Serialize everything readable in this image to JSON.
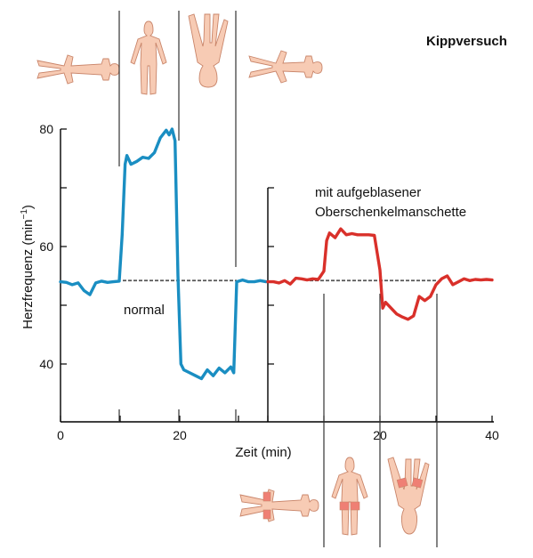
{
  "chart_data": {
    "type": "line",
    "title": "Kippversuch",
    "xlabel": "Zeit (min)",
    "ylabel": "Herzfrequenz (min",
    "ylabel_sup": "−1",
    "ylabel_tail": ")",
    "y_ticks": [
      "80",
      "60",
      "40"
    ],
    "ylim": [
      30,
      85
    ],
    "panels": [
      {
        "name": "normal",
        "annotation": "normal",
        "xlim": [
          0,
          35
        ],
        "x_ticks": [
          "0",
          "20"
        ],
        "baseline": 54.2,
        "color": "#1a8ec2",
        "points": [
          [
            0,
            54
          ],
          [
            1,
            53.9
          ],
          [
            2,
            53.5
          ],
          [
            3,
            53.8
          ],
          [
            4,
            52.5
          ],
          [
            5,
            51.8
          ],
          [
            6,
            53.8
          ],
          [
            7,
            54.1
          ],
          [
            8,
            53.9
          ],
          [
            9,
            54
          ],
          [
            10,
            54.1
          ],
          [
            10.5,
            62
          ],
          [
            11,
            74
          ],
          [
            11.3,
            75.5
          ],
          [
            12,
            74
          ],
          [
            13,
            74.5
          ],
          [
            14,
            75.2
          ],
          [
            15,
            75
          ],
          [
            16,
            76
          ],
          [
            17,
            78.5
          ],
          [
            18,
            79.8
          ],
          [
            18.5,
            79
          ],
          [
            19,
            80
          ],
          [
            19.5,
            78
          ],
          [
            20,
            55
          ],
          [
            20.5,
            40
          ],
          [
            21,
            39
          ],
          [
            22,
            38.5
          ],
          [
            23,
            38
          ],
          [
            24,
            37.5
          ],
          [
            25,
            39
          ],
          [
            26,
            38
          ],
          [
            27,
            39.3
          ],
          [
            28,
            38.5
          ],
          [
            29,
            39.5
          ],
          [
            29.5,
            38.5
          ],
          [
            30,
            54
          ],
          [
            31,
            54.3
          ],
          [
            32,
            54
          ],
          [
            33,
            54
          ],
          [
            34,
            54.2
          ],
          [
            35,
            54
          ]
        ]
      },
      {
        "name": "mit aufgeblasener Oberschenkelmanschette",
        "annotation_line1": "mit aufgeblasener",
        "annotation_line2": "Oberschenkelmanschette",
        "xlim": [
          0,
          40
        ],
        "x_ticks": [
          "20",
          "40"
        ],
        "baseline": 54.2,
        "color": "#d9302a",
        "points": [
          [
            0,
            54
          ],
          [
            1,
            54
          ],
          [
            2,
            53.8
          ],
          [
            3,
            54.2
          ],
          [
            4,
            53.6
          ],
          [
            5,
            54.6
          ],
          [
            6,
            54.5
          ],
          [
            7,
            54.3
          ],
          [
            8,
            54.5
          ],
          [
            9,
            54.4
          ],
          [
            10,
            55.8
          ],
          [
            10.5,
            61
          ],
          [
            11,
            62.3
          ],
          [
            12,
            61.5
          ],
          [
            13,
            63
          ],
          [
            14,
            62
          ],
          [
            15,
            62.2
          ],
          [
            16,
            62
          ],
          [
            17,
            62
          ],
          [
            18,
            62
          ],
          [
            19,
            61.9
          ],
          [
            20,
            56
          ],
          [
            20.5,
            49.5
          ],
          [
            21,
            50.5
          ],
          [
            22,
            49.5
          ],
          [
            23,
            48.5
          ],
          [
            24,
            48
          ],
          [
            25,
            47.6
          ],
          [
            26,
            48.2
          ],
          [
            27,
            51.5
          ],
          [
            28,
            50.8
          ],
          [
            29,
            51.5
          ],
          [
            30,
            53.5
          ],
          [
            31,
            54.5
          ],
          [
            32,
            55
          ],
          [
            33,
            53.5
          ],
          [
            34,
            54
          ],
          [
            35,
            54.5
          ],
          [
            36,
            54.2
          ],
          [
            37,
            54.4
          ],
          [
            38,
            54.3
          ],
          [
            39,
            54.4
          ],
          [
            40,
            54.3
          ]
        ]
      }
    ]
  }
}
